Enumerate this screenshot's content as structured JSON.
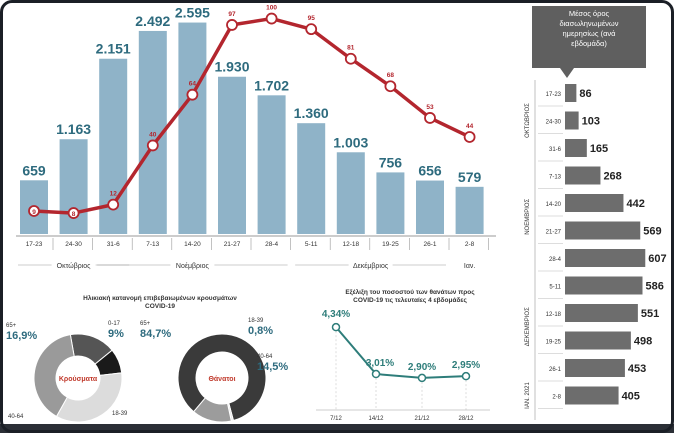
{
  "chart_data": [
    {
      "type": "bar+line",
      "title": "",
      "categories": [
        "17-23",
        "24-30",
        "31-6",
        "7-13",
        "14-20",
        "21-27",
        "28-4",
        "5-11",
        "12-18",
        "19-25",
        "26-1",
        "2-8"
      ],
      "month_labels": [
        "Οκτώβριος",
        "Νοέμβριος",
        "Δεκέμβριος",
        "Ιαν."
      ],
      "series": [
        {
          "name": "cases",
          "values": [
            659,
            1163,
            2151,
            2492,
            2595,
            1930,
            1702,
            1360,
            1003,
            756,
            656,
            579
          ],
          "labels": [
            "659",
            "1.163",
            "2.151",
            "2.492",
            "2.595",
            "1.930",
            "1.702",
            "1.360",
            "1.003",
            "756",
            "656",
            "579"
          ]
        },
        {
          "name": "deaths",
          "values": [
            9,
            8,
            12,
            40,
            64,
            97,
            100,
            95,
            81,
            68,
            53,
            44
          ],
          "labels": [
            "9",
            "8",
            "12",
            "40",
            "64",
            "97",
            "100",
            "95",
            "81",
            "68",
            "53",
            "44"
          ]
        }
      ],
      "ylim": [
        0,
        2700
      ],
      "line_ylim": [
        0,
        105
      ],
      "colors": {
        "bar": "#8fb3c8",
        "line": "#b3262e",
        "value": "#2e6b7e"
      }
    },
    {
      "type": "bar",
      "title": "Μέσος όρος διασωληνωμένων ημερησίως (ανά εβδομάδα)",
      "orientation": "horizontal",
      "categories": [
        "17-23",
        "24-30",
        "31-6",
        "7-13",
        "14-20",
        "21-27",
        "28-4",
        "5-11",
        "12-18",
        "19-25",
        "26-1",
        "2-8"
      ],
      "values": [
        86,
        103,
        165,
        268,
        442,
        569,
        607,
        586,
        551,
        498,
        453,
        405
      ],
      "group_labels": [
        "ΟΚΤΩΒΡΙΟΣ",
        "ΝΟΕΜΒΡΙΟΣ",
        "ΔΕΚΕΜΒΡΙΟΣ",
        "ΙΑΝ. 2021"
      ],
      "xlim": [
        0,
        620
      ],
      "colors": {
        "bar": "#6d6d6d"
      }
    },
    {
      "type": "pie",
      "title": "Ηλικιακή κατανομή επιβεβαιωμένων κρουσμάτων COVID-19",
      "center_label": "Κρούσματα",
      "slices": [
        {
          "label": "65+",
          "value": 16.9,
          "display": "16,9%"
        },
        {
          "label": "0-17",
          "value": 9,
          "display": "9%"
        },
        {
          "label": "18-39",
          "value": 35,
          "display": ""
        },
        {
          "label": "40-64",
          "value": 39.1,
          "display": ""
        }
      ]
    },
    {
      "type": "pie",
      "title": "",
      "center_label": "Θάνατοι",
      "slices": [
        {
          "label": "65+",
          "value": 84.7,
          "display": "84,7%"
        },
        {
          "label": "18-39",
          "value": 0.8,
          "display": "0,8%"
        },
        {
          "label": "40-64",
          "value": 14.5,
          "display": "14,5%"
        }
      ]
    },
    {
      "type": "line",
      "title": "Εξέλιξη του ποσοστού των θανάτων προς COVID-19 τις τελευταίες 4 εβδομάδες",
      "x": [
        "7/12",
        "14/12",
        "21/12",
        "28/12"
      ],
      "values": [
        4.34,
        3.01,
        2.9,
        2.95
      ],
      "labels": [
        "4,34%",
        "3,01%",
        "2,90%",
        "2,95%"
      ],
      "ylim": [
        2.5,
        4.6
      ],
      "colors": {
        "line": "#2e7d7a"
      }
    }
  ]
}
